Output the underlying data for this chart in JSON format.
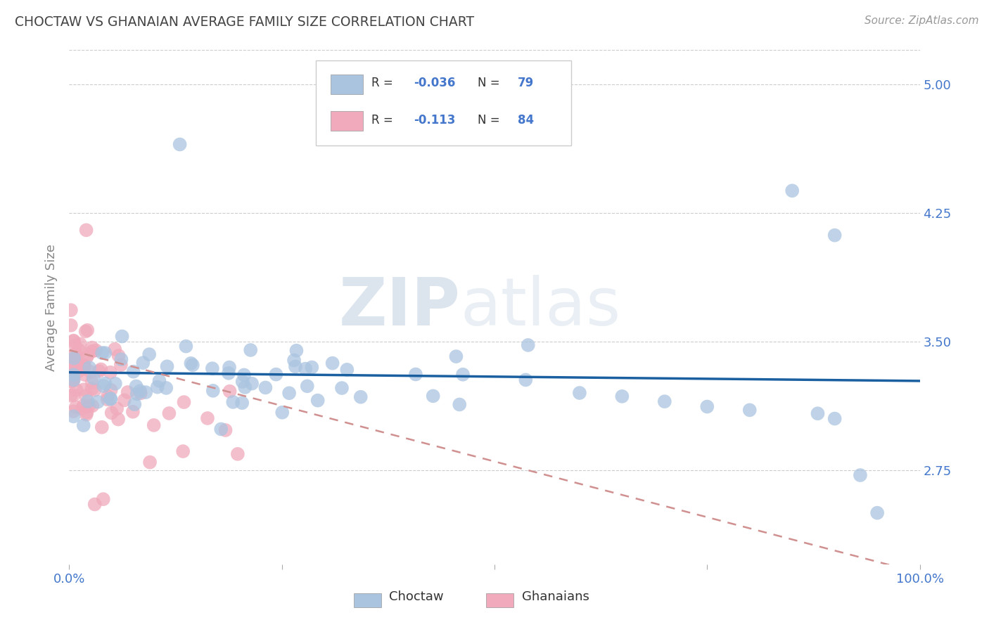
{
  "title": "CHOCTAW VS GHANAIAN AVERAGE FAMILY SIZE CORRELATION CHART",
  "ylabel": "Average Family Size",
  "source_text": "Source: ZipAtlas.com",
  "watermark_zip": "ZIP",
  "watermark_atlas": "atlas",
  "xlim": [
    0.0,
    1.0
  ],
  "ylim": [
    2.2,
    5.2
  ],
  "yticks": [
    2.75,
    3.5,
    4.25,
    5.0
  ],
  "choctaw_color": "#aac4e0",
  "ghanaian_color": "#f0aabb",
  "choctaw_line_color": "#1a5fa0",
  "ghanaian_line_color": "#d09090",
  "choctaw_R": -0.036,
  "choctaw_N": 79,
  "ghanaian_R": -0.113,
  "ghanaian_N": 84,
  "legend_label_choctaw": "Choctaw",
  "legend_label_ghanaian": "Ghanaians",
  "background_color": "#ffffff",
  "grid_color": "#cccccc",
  "title_color": "#444444",
  "axis_label_color": "#4477cc",
  "tick_color": "#4477cc",
  "ylabel_color": "#888888"
}
